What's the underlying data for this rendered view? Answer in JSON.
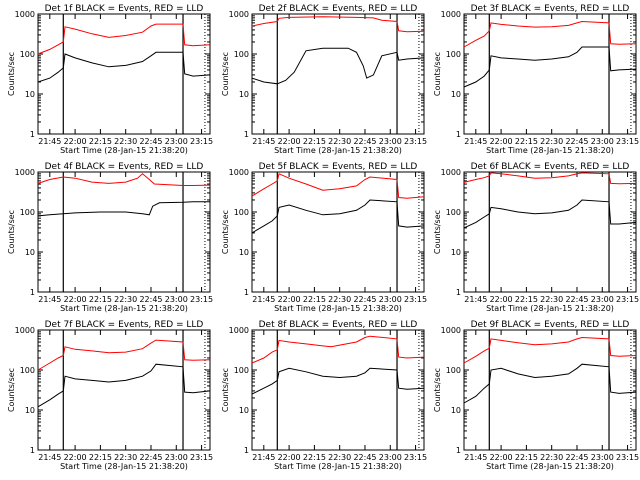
{
  "common": {
    "xlabel": "Start Time (28-Jan-15 21:38:20)",
    "ylabel": "Counts/sec",
    "xticks": [
      "21:45",
      "22:00",
      "22:15",
      "22:30",
      "22:45",
      "23:00",
      "23:15"
    ],
    "yticks": [
      "1",
      "10",
      "100",
      "1000"
    ],
    "legend_text": "BLACK = Events, RED = LLD",
    "series_colors": {
      "events": "#000000",
      "lld": "#ff0000"
    }
  },
  "chart_data": [
    {
      "type": "line",
      "title": "Det 1f BLACK = Events, RED = LLD",
      "xlabel": "Start Time (28-Jan-15 21:38:20)",
      "ylabel": "Counts/sec",
      "xlim": [
        "21:38",
        "23:20"
      ],
      "ylim": [
        1,
        1000
      ],
      "yscale": "log",
      "markers": [
        "21:53",
        "23:04"
      ],
      "series": [
        {
          "color": "#000000",
          "x": [
            "21:38",
            "21:45",
            "21:50",
            "21:53",
            "21:54",
            "22:00",
            "22:10",
            "22:20",
            "22:30",
            "22:40",
            "22:45",
            "22:48",
            "23:04",
            "23:05",
            "23:10",
            "23:20"
          ],
          "y": [
            20,
            25,
            35,
            45,
            100,
            80,
            60,
            48,
            52,
            65,
            90,
            110,
            110,
            32,
            28,
            30
          ]
        },
        {
          "color": "#ff0000",
          "x": [
            "21:38",
            "21:45",
            "21:50",
            "21:53",
            "21:54",
            "22:00",
            "22:10",
            "22:20",
            "22:30",
            "22:40",
            "22:45",
            "22:48",
            "23:04",
            "23:05",
            "23:10",
            "23:20"
          ],
          "y": [
            100,
            130,
            170,
            200,
            480,
            420,
            320,
            260,
            290,
            350,
            500,
            560,
            560,
            170,
            160,
            170
          ]
        }
      ]
    },
    {
      "type": "line",
      "title": "Det 2f BLACK = Events, RED = LLD",
      "xlabel": "Start Time (28-Jan-15 21:38:20)",
      "ylabel": "Counts/sec",
      "xlim": [
        "21:38",
        "23:20"
      ],
      "ylim": [
        1,
        1000
      ],
      "yscale": "log",
      "markers": [
        "21:53",
        "23:04"
      ],
      "series": [
        {
          "color": "#000000",
          "x": [
            "21:38",
            "21:45",
            "21:53",
            "21:58",
            "22:03",
            "22:10",
            "22:20",
            "22:35",
            "22:40",
            "22:44",
            "22:46",
            "22:50",
            "22:55",
            "23:04",
            "23:05",
            "23:10",
            "23:20"
          ],
          "y": [
            25,
            20,
            18,
            22,
            35,
            120,
            140,
            140,
            110,
            50,
            25,
            30,
            90,
            110,
            70,
            75,
            80
          ]
        },
        {
          "color": "#ff0000",
          "x": [
            "21:38",
            "21:45",
            "21:53",
            "21:54",
            "22:00",
            "22:20",
            "22:40",
            "22:50",
            "22:55",
            "23:04",
            "23:05",
            "23:10",
            "23:20"
          ],
          "y": [
            500,
            580,
            650,
            780,
            820,
            850,
            820,
            800,
            700,
            650,
            380,
            360,
            370
          ]
        }
      ]
    },
    {
      "type": "line",
      "title": "Det 3f BLACK = Events, RED = LLD",
      "xlabel": "Start Time (28-Jan-15 21:38:20)",
      "ylabel": "Counts/sec",
      "xlim": [
        "21:38",
        "23:20"
      ],
      "ylim": [
        1,
        1000
      ],
      "yscale": "log",
      "markers": [
        "21:53",
        "23:04"
      ],
      "series": [
        {
          "color": "#000000",
          "x": [
            "21:38",
            "21:45",
            "21:50",
            "21:53",
            "21:54",
            "22:00",
            "22:10",
            "22:20",
            "22:30",
            "22:40",
            "22:45",
            "22:48",
            "23:04",
            "23:05",
            "23:10",
            "23:20"
          ],
          "y": [
            15,
            20,
            28,
            40,
            90,
            80,
            75,
            70,
            75,
            85,
            110,
            150,
            150,
            38,
            40,
            42
          ]
        },
        {
          "color": "#ff0000",
          "x": [
            "21:38",
            "21:45",
            "21:50",
            "21:53",
            "21:54",
            "22:00",
            "22:10",
            "22:20",
            "22:30",
            "22:40",
            "22:45",
            "22:48",
            "23:04",
            "23:05",
            "23:10",
            "23:20"
          ],
          "y": [
            150,
            220,
            280,
            380,
            600,
            550,
            500,
            470,
            480,
            520,
            600,
            650,
            600,
            180,
            175,
            180
          ]
        }
      ]
    },
    {
      "type": "line",
      "title": "Det 4f BLACK = Events, RED = LLD",
      "xlabel": "Start Time (28-Jan-15 21:38:20)",
      "ylabel": "Counts/sec",
      "xlim": [
        "21:38",
        "23:20"
      ],
      "ylim": [
        1,
        1000
      ],
      "yscale": "log",
      "markers": [
        "21:53",
        "23:04"
      ],
      "series": [
        {
          "color": "#000000",
          "x": [
            "21:38",
            "21:45",
            "21:53",
            "22:00",
            "22:15",
            "22:30",
            "22:40",
            "22:44",
            "22:46",
            "22:50",
            "23:04",
            "23:10",
            "23:20"
          ],
          "y": [
            80,
            85,
            90,
            95,
            100,
            100,
            90,
            85,
            140,
            170,
            175,
            180,
            180
          ]
        },
        {
          "color": "#ff0000",
          "x": [
            "21:38",
            "21:45",
            "21:53",
            "22:00",
            "22:10",
            "22:20",
            "22:30",
            "22:37",
            "22:40",
            "22:44",
            "22:47",
            "23:04",
            "23:10",
            "23:20"
          ],
          "y": [
            520,
            650,
            750,
            700,
            560,
            520,
            560,
            700,
            900,
            650,
            500,
            460,
            460,
            470
          ]
        }
      ]
    },
    {
      "type": "line",
      "title": "Det 5f BLACK = Events, RED = LLD",
      "xlabel": "Start Time (28-Jan-15 21:38:20)",
      "ylabel": "Counts/sec",
      "xlim": [
        "21:38",
        "23:20"
      ],
      "ylim": [
        1,
        1000
      ],
      "yscale": "log",
      "markers": [
        "21:53",
        "23:04"
      ],
      "series": [
        {
          "color": "#000000",
          "x": [
            "21:38",
            "21:45",
            "21:50",
            "21:53",
            "21:54",
            "22:00",
            "22:10",
            "22:20",
            "22:30",
            "22:40",
            "22:45",
            "22:48",
            "23:04",
            "23:05",
            "23:10",
            "23:20"
          ],
          "y": [
            30,
            45,
            60,
            80,
            130,
            150,
            110,
            85,
            90,
            110,
            150,
            200,
            180,
            45,
            42,
            45
          ]
        },
        {
          "color": "#ff0000",
          "x": [
            "21:38",
            "21:45",
            "21:50",
            "21:53",
            "21:54",
            "22:00",
            "22:10",
            "22:20",
            "22:30",
            "22:40",
            "22:45",
            "22:48",
            "23:04",
            "23:05",
            "23:10",
            "23:20"
          ],
          "y": [
            250,
            380,
            500,
            600,
            900,
            700,
            500,
            350,
            380,
            450,
            650,
            750,
            650,
            230,
            220,
            240
          ]
        }
      ]
    },
    {
      "type": "line",
      "title": "Det 6f BLACK = Events, RED = LLD",
      "xlabel": "Start Time (28-Jan-15 21:38:20)",
      "ylabel": "Counts/sec",
      "xlim": [
        "21:38",
        "23:20"
      ],
      "ylim": [
        1,
        1000
      ],
      "yscale": "log",
      "markers": [
        "21:53",
        "23:04"
      ],
      "series": [
        {
          "color": "#000000",
          "x": [
            "21:38",
            "21:45",
            "21:50",
            "21:53",
            "21:54",
            "22:00",
            "22:10",
            "22:20",
            "22:30",
            "22:40",
            "22:45",
            "22:48",
            "23:04",
            "23:05",
            "23:10",
            "23:20"
          ],
          "y": [
            40,
            55,
            75,
            90,
            130,
            120,
            100,
            90,
            95,
            110,
            150,
            200,
            180,
            50,
            50,
            55
          ]
        },
        {
          "color": "#ff0000",
          "x": [
            "21:38",
            "21:45",
            "21:50",
            "21:53",
            "21:54",
            "22:00",
            "22:10",
            "22:20",
            "22:30",
            "22:40",
            "22:45",
            "22:48",
            "23:04",
            "23:05",
            "23:10",
            "23:20"
          ],
          "y": [
            550,
            650,
            720,
            800,
            950,
            900,
            800,
            700,
            720,
            800,
            900,
            950,
            900,
            520,
            510,
            520
          ]
        }
      ]
    },
    {
      "type": "line",
      "title": "Det 7f BLACK = Events, RED = LLD",
      "xlabel": "Start Time (28-Jan-15 21:38:20)",
      "ylabel": "Counts/sec",
      "xlim": [
        "21:38",
        "23:20"
      ],
      "ylim": [
        1,
        1000
      ],
      "yscale": "log",
      "markers": [
        "21:53",
        "23:04"
      ],
      "series": [
        {
          "color": "#000000",
          "x": [
            "21:38",
            "21:45",
            "21:50",
            "21:53",
            "21:54",
            "22:00",
            "22:10",
            "22:20",
            "22:30",
            "22:40",
            "22:45",
            "22:48",
            "23:04",
            "23:05",
            "23:10",
            "23:20"
          ],
          "y": [
            12,
            18,
            25,
            30,
            70,
            60,
            55,
            50,
            55,
            70,
            95,
            140,
            120,
            28,
            27,
            30
          ]
        },
        {
          "color": "#ff0000",
          "x": [
            "21:38",
            "21:45",
            "21:50",
            "21:53",
            "21:54",
            "22:00",
            "22:10",
            "22:20",
            "22:30",
            "22:40",
            "22:45",
            "22:48",
            "23:04",
            "23:05",
            "23:10",
            "23:20"
          ],
          "y": [
            100,
            150,
            200,
            230,
            380,
            330,
            300,
            270,
            280,
            340,
            470,
            560,
            500,
            180,
            175,
            180
          ]
        }
      ]
    },
    {
      "type": "line",
      "title": "Det 8f BLACK = Events, RED = LLD",
      "xlabel": "Start Time (28-Jan-15 21:38:20)",
      "ylabel": "Counts/sec",
      "xlim": [
        "21:38",
        "23:20"
      ],
      "ylim": [
        1,
        1000
      ],
      "yscale": "log",
      "markers": [
        "21:53",
        "23:04"
      ],
      "series": [
        {
          "color": "#000000",
          "x": [
            "21:38",
            "21:45",
            "21:50",
            "21:53",
            "21:54",
            "22:00",
            "22:10",
            "22:20",
            "22:30",
            "22:40",
            "22:45",
            "22:48",
            "23:04",
            "23:05",
            "23:10",
            "23:20"
          ],
          "y": [
            25,
            35,
            45,
            55,
            90,
            110,
            90,
            70,
            65,
            70,
            85,
            110,
            100,
            35,
            33,
            35
          ]
        },
        {
          "color": "#ff0000",
          "x": [
            "21:38",
            "21:45",
            "21:50",
            "21:53",
            "21:54",
            "22:00",
            "22:10",
            "22:20",
            "22:25",
            "22:30",
            "22:40",
            "22:45",
            "22:48",
            "23:04",
            "23:05",
            "23:10",
            "23:20"
          ],
          "y": [
            150,
            200,
            280,
            320,
            550,
            500,
            450,
            400,
            380,
            420,
            500,
            650,
            700,
            600,
            210,
            200,
            210
          ]
        }
      ]
    },
    {
      "type": "line",
      "title": "Det 9f BLACK = Events, RED = LLD",
      "xlabel": "Start Time (28-Jan-15 21:38:20)",
      "ylabel": "Counts/sec",
      "xlim": [
        "21:38",
        "23:20"
      ],
      "ylim": [
        1,
        1000
      ],
      "yscale": "log",
      "markers": [
        "21:53",
        "23:04"
      ],
      "series": [
        {
          "color": "#000000",
          "x": [
            "21:38",
            "21:45",
            "21:50",
            "21:53",
            "21:54",
            "22:00",
            "22:10",
            "22:20",
            "22:30",
            "22:40",
            "22:45",
            "22:48",
            "23:04",
            "23:05",
            "23:10",
            "23:20"
          ],
          "y": [
            15,
            22,
            35,
            45,
            100,
            110,
            80,
            65,
            70,
            80,
            110,
            140,
            120,
            28,
            26,
            28
          ]
        },
        {
          "color": "#ff0000",
          "x": [
            "21:38",
            "21:45",
            "21:50",
            "21:53",
            "21:54",
            "22:00",
            "22:10",
            "22:20",
            "22:30",
            "22:40",
            "22:45",
            "22:48",
            "23:04",
            "23:05",
            "23:10",
            "23:20"
          ],
          "y": [
            150,
            220,
            300,
            350,
            600,
            550,
            480,
            430,
            450,
            500,
            600,
            650,
            600,
            230,
            220,
            230
          ]
        }
      ]
    }
  ]
}
